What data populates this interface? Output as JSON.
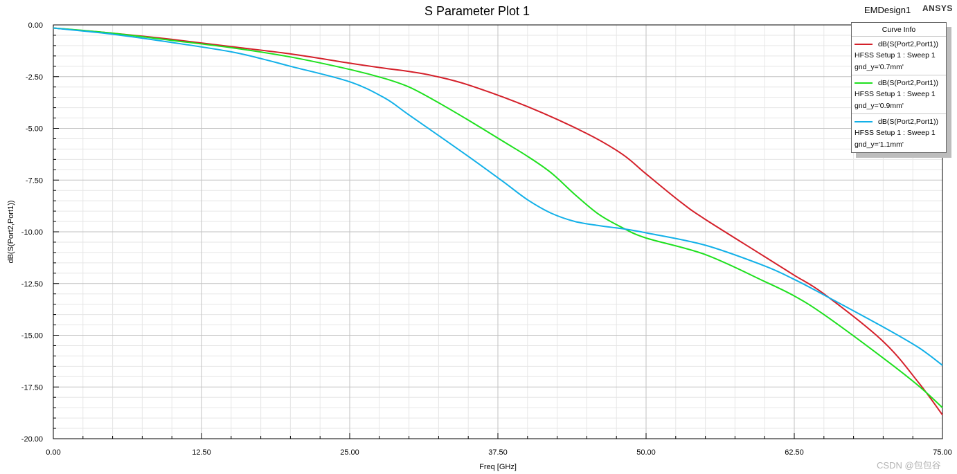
{
  "header": {
    "design_name": "EMDesign1",
    "brand": "ANSYS"
  },
  "legend": {
    "title": "Curve Info",
    "entries": [
      {
        "expr": "dB(S(Port2,Port1))",
        "setup": "HFSS Setup 1 : Sweep 1",
        "param": "gnd_y='0.7mm'",
        "color": "#d4202a"
      },
      {
        "expr": "dB(S(Port2,Port1))",
        "setup": "HFSS Setup 1 : Sweep 1",
        "param": "gnd_y='0.9mm'",
        "color": "#1ee01e"
      },
      {
        "expr": "dB(S(Port2,Port1))",
        "setup": "HFSS Setup 1 : Sweep 1",
        "param": "gnd_y='1.1mm'",
        "color": "#12b0e8"
      }
    ]
  },
  "watermark": "CSDN @包包谷",
  "chart_data": {
    "type": "line",
    "title": "S Parameter Plot 1",
    "xlabel": "Freq [GHz]",
    "ylabel": "dB(S(Port2,Port1))",
    "xlim": [
      0,
      75
    ],
    "ylim": [
      -20,
      0
    ],
    "x_ticks": [
      "0.00",
      "12.50",
      "25.00",
      "37.50",
      "50.00",
      "62.50",
      "75.00"
    ],
    "y_ticks": [
      "0.00",
      "-2.50",
      "-5.00",
      "-7.50",
      "-10.00",
      "-12.50",
      "-15.00",
      "-17.50",
      "-20.00"
    ],
    "grid": true,
    "legend_position": "top-right",
    "series": [
      {
        "name": "dB(S(Port2,Port1)) HFSS Setup 1 : Sweep 1 gnd_y='0.7mm'",
        "color": "#d4202a",
        "x": [
          0,
          5,
          10,
          15,
          20,
          25,
          28,
          30,
          32,
          35,
          40,
          45,
          48,
          50,
          53,
          55,
          60,
          62.5,
          65,
          70,
          73,
          75
        ],
        "y": [
          -0.15,
          -0.4,
          -0.7,
          -1.05,
          -1.4,
          -1.85,
          -2.1,
          -2.25,
          -2.45,
          -2.9,
          -3.95,
          -5.25,
          -6.25,
          -7.2,
          -8.6,
          -9.4,
          -11.2,
          -12.1,
          -13.0,
          -15.3,
          -17.3,
          -18.85
        ]
      },
      {
        "name": "dB(S(Port2,Port1)) HFSS Setup 1 : Sweep 1 gnd_y='0.9mm'",
        "color": "#1ee01e",
        "x": [
          0,
          5,
          10,
          15,
          20,
          25,
          28,
          30,
          32,
          35,
          38,
          40,
          42,
          44,
          46,
          48,
          50,
          55,
          60,
          62.5,
          65,
          70,
          73,
          75
        ],
        "y": [
          -0.15,
          -0.4,
          -0.75,
          -1.1,
          -1.55,
          -2.15,
          -2.6,
          -3.0,
          -3.6,
          -4.6,
          -5.65,
          -6.35,
          -7.15,
          -8.2,
          -9.15,
          -9.8,
          -10.3,
          -11.1,
          -12.4,
          -13.1,
          -14.0,
          -16.1,
          -17.45,
          -18.5
        ]
      },
      {
        "name": "dB(S(Port2,Port1)) HFSS Setup 1 : Sweep 1 gnd_y='1.1mm'",
        "color": "#12b0e8",
        "x": [
          0,
          5,
          10,
          15,
          18,
          20,
          25,
          28,
          30,
          35,
          38,
          40,
          42,
          44,
          46,
          48,
          50,
          55,
          60,
          62.5,
          65,
          70,
          73,
          75
        ],
        "y": [
          -0.15,
          -0.45,
          -0.85,
          -1.3,
          -1.7,
          -2.0,
          -2.75,
          -3.55,
          -4.35,
          -6.35,
          -7.6,
          -8.45,
          -9.1,
          -9.5,
          -9.7,
          -9.85,
          -10.05,
          -10.65,
          -11.65,
          -12.3,
          -13.05,
          -14.6,
          -15.6,
          -16.45
        ]
      }
    ]
  }
}
